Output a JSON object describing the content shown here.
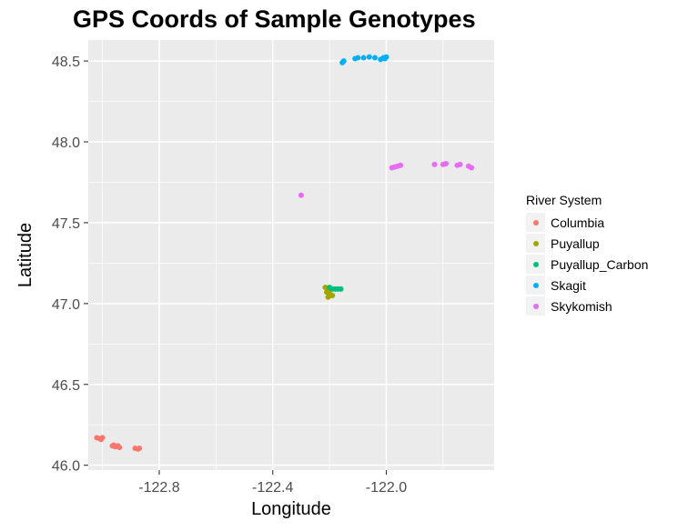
{
  "chart_data": {
    "type": "scatter",
    "title": "GPS Coords of Sample Genotypes",
    "xlabel": "Longitude",
    "ylabel": "Latitude",
    "xlim": [
      -123.05,
      -121.62
    ],
    "ylim": [
      45.97,
      48.63
    ],
    "x_ticks": [
      -122.8,
      -122.4,
      -122.0
    ],
    "x_tick_labels": [
      "-122.8",
      "-122.4",
      "-122.0"
    ],
    "y_ticks": [
      46.0,
      46.5,
      47.0,
      47.5,
      48.0,
      48.5
    ],
    "y_tick_labels": [
      "46.0",
      "46.5",
      "47.0",
      "47.5",
      "48.0",
      "48.5"
    ],
    "grid": true,
    "legend": {
      "title": "River System",
      "placement": "right"
    },
    "series": [
      {
        "name": "Columbia",
        "color": "#F8766D",
        "points": [
          [
            -123.02,
            46.17
          ],
          [
            -123.01,
            46.165
          ],
          [
            -123.0,
            46.17
          ],
          [
            -123.005,
            46.16
          ],
          [
            -122.965,
            46.12
          ],
          [
            -122.955,
            46.115
          ],
          [
            -122.945,
            46.12
          ],
          [
            -122.94,
            46.11
          ],
          [
            -122.96,
            46.125
          ],
          [
            -122.885,
            46.105
          ],
          [
            -122.875,
            46.1
          ],
          [
            -122.87,
            46.105
          ]
        ]
      },
      {
        "name": "Puyallup",
        "color": "#A3A500",
        "points": [
          [
            -122.215,
            47.1
          ],
          [
            -122.205,
            47.09
          ],
          [
            -122.2,
            47.08
          ],
          [
            -122.21,
            47.07
          ],
          [
            -122.2,
            47.06
          ],
          [
            -122.195,
            47.05
          ],
          [
            -122.205,
            47.04
          ],
          [
            -122.19,
            47.05
          ],
          [
            -122.21,
            47.095
          ]
        ]
      },
      {
        "name": "Puyallup_Carbon",
        "color": "#00BF7D",
        "points": [
          [
            -122.2,
            47.1
          ],
          [
            -122.19,
            47.09
          ],
          [
            -122.18,
            47.09
          ],
          [
            -122.17,
            47.09
          ],
          [
            -122.16,
            47.09
          ]
        ]
      },
      {
        "name": "Skagit",
        "color": "#00B0F6",
        "points": [
          [
            -122.155,
            48.49
          ],
          [
            -122.15,
            48.5
          ],
          [
            -122.11,
            48.515
          ],
          [
            -122.1,
            48.52
          ],
          [
            -122.08,
            48.52
          ],
          [
            -122.06,
            48.525
          ],
          [
            -122.04,
            48.52
          ],
          [
            -122.02,
            48.51
          ],
          [
            -122.01,
            48.52
          ],
          [
            -122.005,
            48.515
          ],
          [
            -122.0,
            48.525
          ]
        ]
      },
      {
        "name": "Skykomish",
        "color": "#E76BF3",
        "points": [
          [
            -122.3,
            47.67
          ],
          [
            -121.98,
            47.84
          ],
          [
            -121.97,
            47.845
          ],
          [
            -121.96,
            47.85
          ],
          [
            -121.95,
            47.855
          ],
          [
            -121.83,
            47.86
          ],
          [
            -121.8,
            47.86
          ],
          [
            -121.79,
            47.865
          ],
          [
            -121.75,
            47.855
          ],
          [
            -121.74,
            47.86
          ],
          [
            -121.71,
            47.85
          ],
          [
            -121.7,
            47.84
          ]
        ]
      }
    ]
  }
}
